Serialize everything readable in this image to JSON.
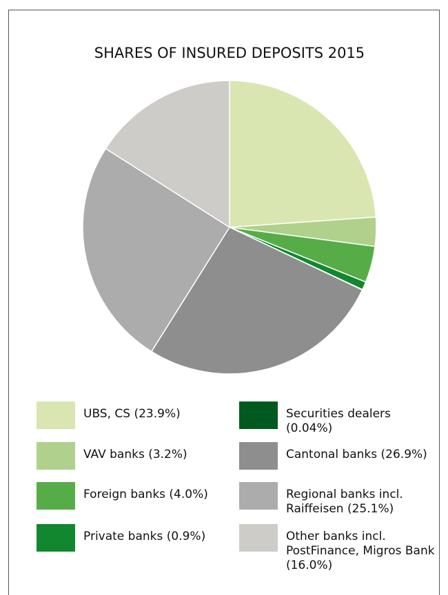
{
  "chart_data": {
    "type": "pie",
    "title": "SHARES OF INSURED DEPOSITS 2015",
    "categories": [
      "UBS, CS (23.9%)",
      "VAV banks (3.2%)",
      "Foreign banks (4.0%)",
      "Private banks (0.9%)",
      "Securities dealers (0.04%)",
      "Cantonal banks (26.9%)",
      "Regional banks incl. Raiffeisen (25.1%)",
      "Other banks incl. PostFinance, Migros Bank (16.0%)"
    ],
    "values": [
      23.9,
      3.2,
      4.0,
      0.9,
      0.04,
      26.9,
      25.1,
      16.0
    ],
    "colors": [
      "#d9e6b1",
      "#afd18b",
      "#56ad47",
      "#13872f",
      "#005a1f",
      "#8e8e8e",
      "#acacac",
      "#cdccc8"
    ]
  }
}
